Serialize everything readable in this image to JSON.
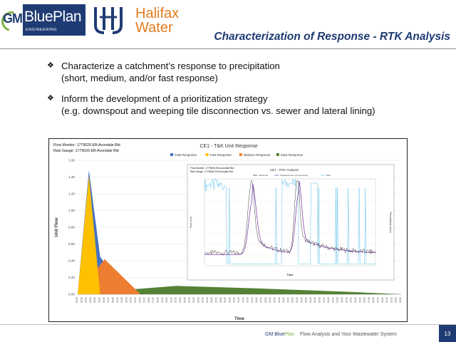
{
  "header": {
    "logo_gm": {
      "mark": "GM",
      "name": "BluePlan",
      "sub": "ENGINEERING"
    },
    "logo_hw": {
      "line1": "Halifax",
      "line2": "Water"
    },
    "title": "Characterization of Response - RTK Analysis"
  },
  "bullets": [
    {
      "line1": "Characterize a catchment’s response to precipitation",
      "line2": "(short, medium, and/or fast response)"
    },
    {
      "line1": "Inform the development of a prioritization strategy",
      "line2": "(e.g. downspout and weeping tile disconnection vs. sewer and lateral lining)"
    }
  ],
  "chart_data": [
    {
      "type": "area",
      "title": "CE1 - T&K Unit Response",
      "meta": [
        "Flow Monitor: 1779626-EB-Avondale Bld",
        "Rain Gauge: 1779626-EB-Avondale Bld"
      ],
      "xlabel": "Time",
      "ylabel": "Unit Flow",
      "ylim": [
        0,
        1.6
      ],
      "yticks": [
        "0.00",
        "0.20",
        "0.40",
        "0.60",
        "0.80",
        "1.00",
        "1.20",
        "1.40",
        "1.60"
      ],
      "legend": [
        "Total Response",
        "Fast Response",
        "Medium Response",
        "Slow Response"
      ],
      "colors": {
        "total": "#4472c4",
        "fast": "#ffc000",
        "medium": "#ed7d31",
        "slow": "#548235"
      },
      "x_hours": [
        0,
        1,
        2,
        3,
        4,
        5,
        6,
        7,
        8,
        9,
        10,
        11,
        12,
        13,
        14,
        15,
        16,
        17,
        18,
        19,
        20,
        21,
        22,
        23,
        24,
        25,
        26,
        27,
        28,
        29,
        30,
        31,
        32,
        33,
        34,
        35,
        36,
        37,
        38,
        39,
        40,
        41,
        42,
        43,
        44,
        45,
        46,
        47,
        48,
        49,
        50,
        51,
        52,
        53,
        54,
        55,
        56,
        57,
        58,
        59,
        60,
        61,
        62,
        63,
        64,
        65,
        66,
        67,
        68,
        69,
        70,
        71,
        72
      ],
      "series": [
        {
          "name": "Total Response",
          "points": [
            [
              0,
              0
            ],
            [
              2.5,
              1.48
            ],
            [
              5,
              0.45
            ],
            [
              10,
              0.05
            ],
            [
              20,
              0.09
            ],
            [
              30,
              0.07
            ],
            [
              50,
              0.03
            ],
            [
              72,
              0.0
            ]
          ]
        },
        {
          "name": "Fast Response",
          "points": [
            [
              0,
              0
            ],
            [
              2.5,
              1.42
            ],
            [
              5,
              0.0
            ]
          ]
        },
        {
          "name": "Medium Response",
          "points": [
            [
              0,
              0
            ],
            [
              6,
              0.42
            ],
            [
              14,
              0.0
            ]
          ]
        },
        {
          "name": "Slow Response",
          "points": [
            [
              0,
              0
            ],
            [
              8,
              0.04
            ],
            [
              22,
              0.1
            ],
            [
              40,
              0.07
            ],
            [
              60,
              0.03
            ],
            [
              72,
              0.0
            ]
          ]
        }
      ]
    },
    {
      "type": "line",
      "title": "CE1 - RTK Analysis",
      "meta": [
        "Flow Monitor: 1779626-EB-Avondale Bld",
        "Rain Gauge: 1779626-EB-Avondale Bld"
      ],
      "xlabel": "Time",
      "ylabel": "Flow (L/s)",
      "y2label": "Precipitation (mm)",
      "legend": [
        "Observed",
        "Modelled (sum of responses)",
        "Rain"
      ],
      "colors": {
        "observed": "#2b2b2b",
        "modelled": "#7030a0",
        "rain": "#5bc0eb"
      }
    }
  ],
  "footer": {
    "brand_a": "GM Blue",
    "brand_b": "Plan",
    "tagline": "Flow Analysis and Your Wastewater System",
    "page": "13"
  }
}
